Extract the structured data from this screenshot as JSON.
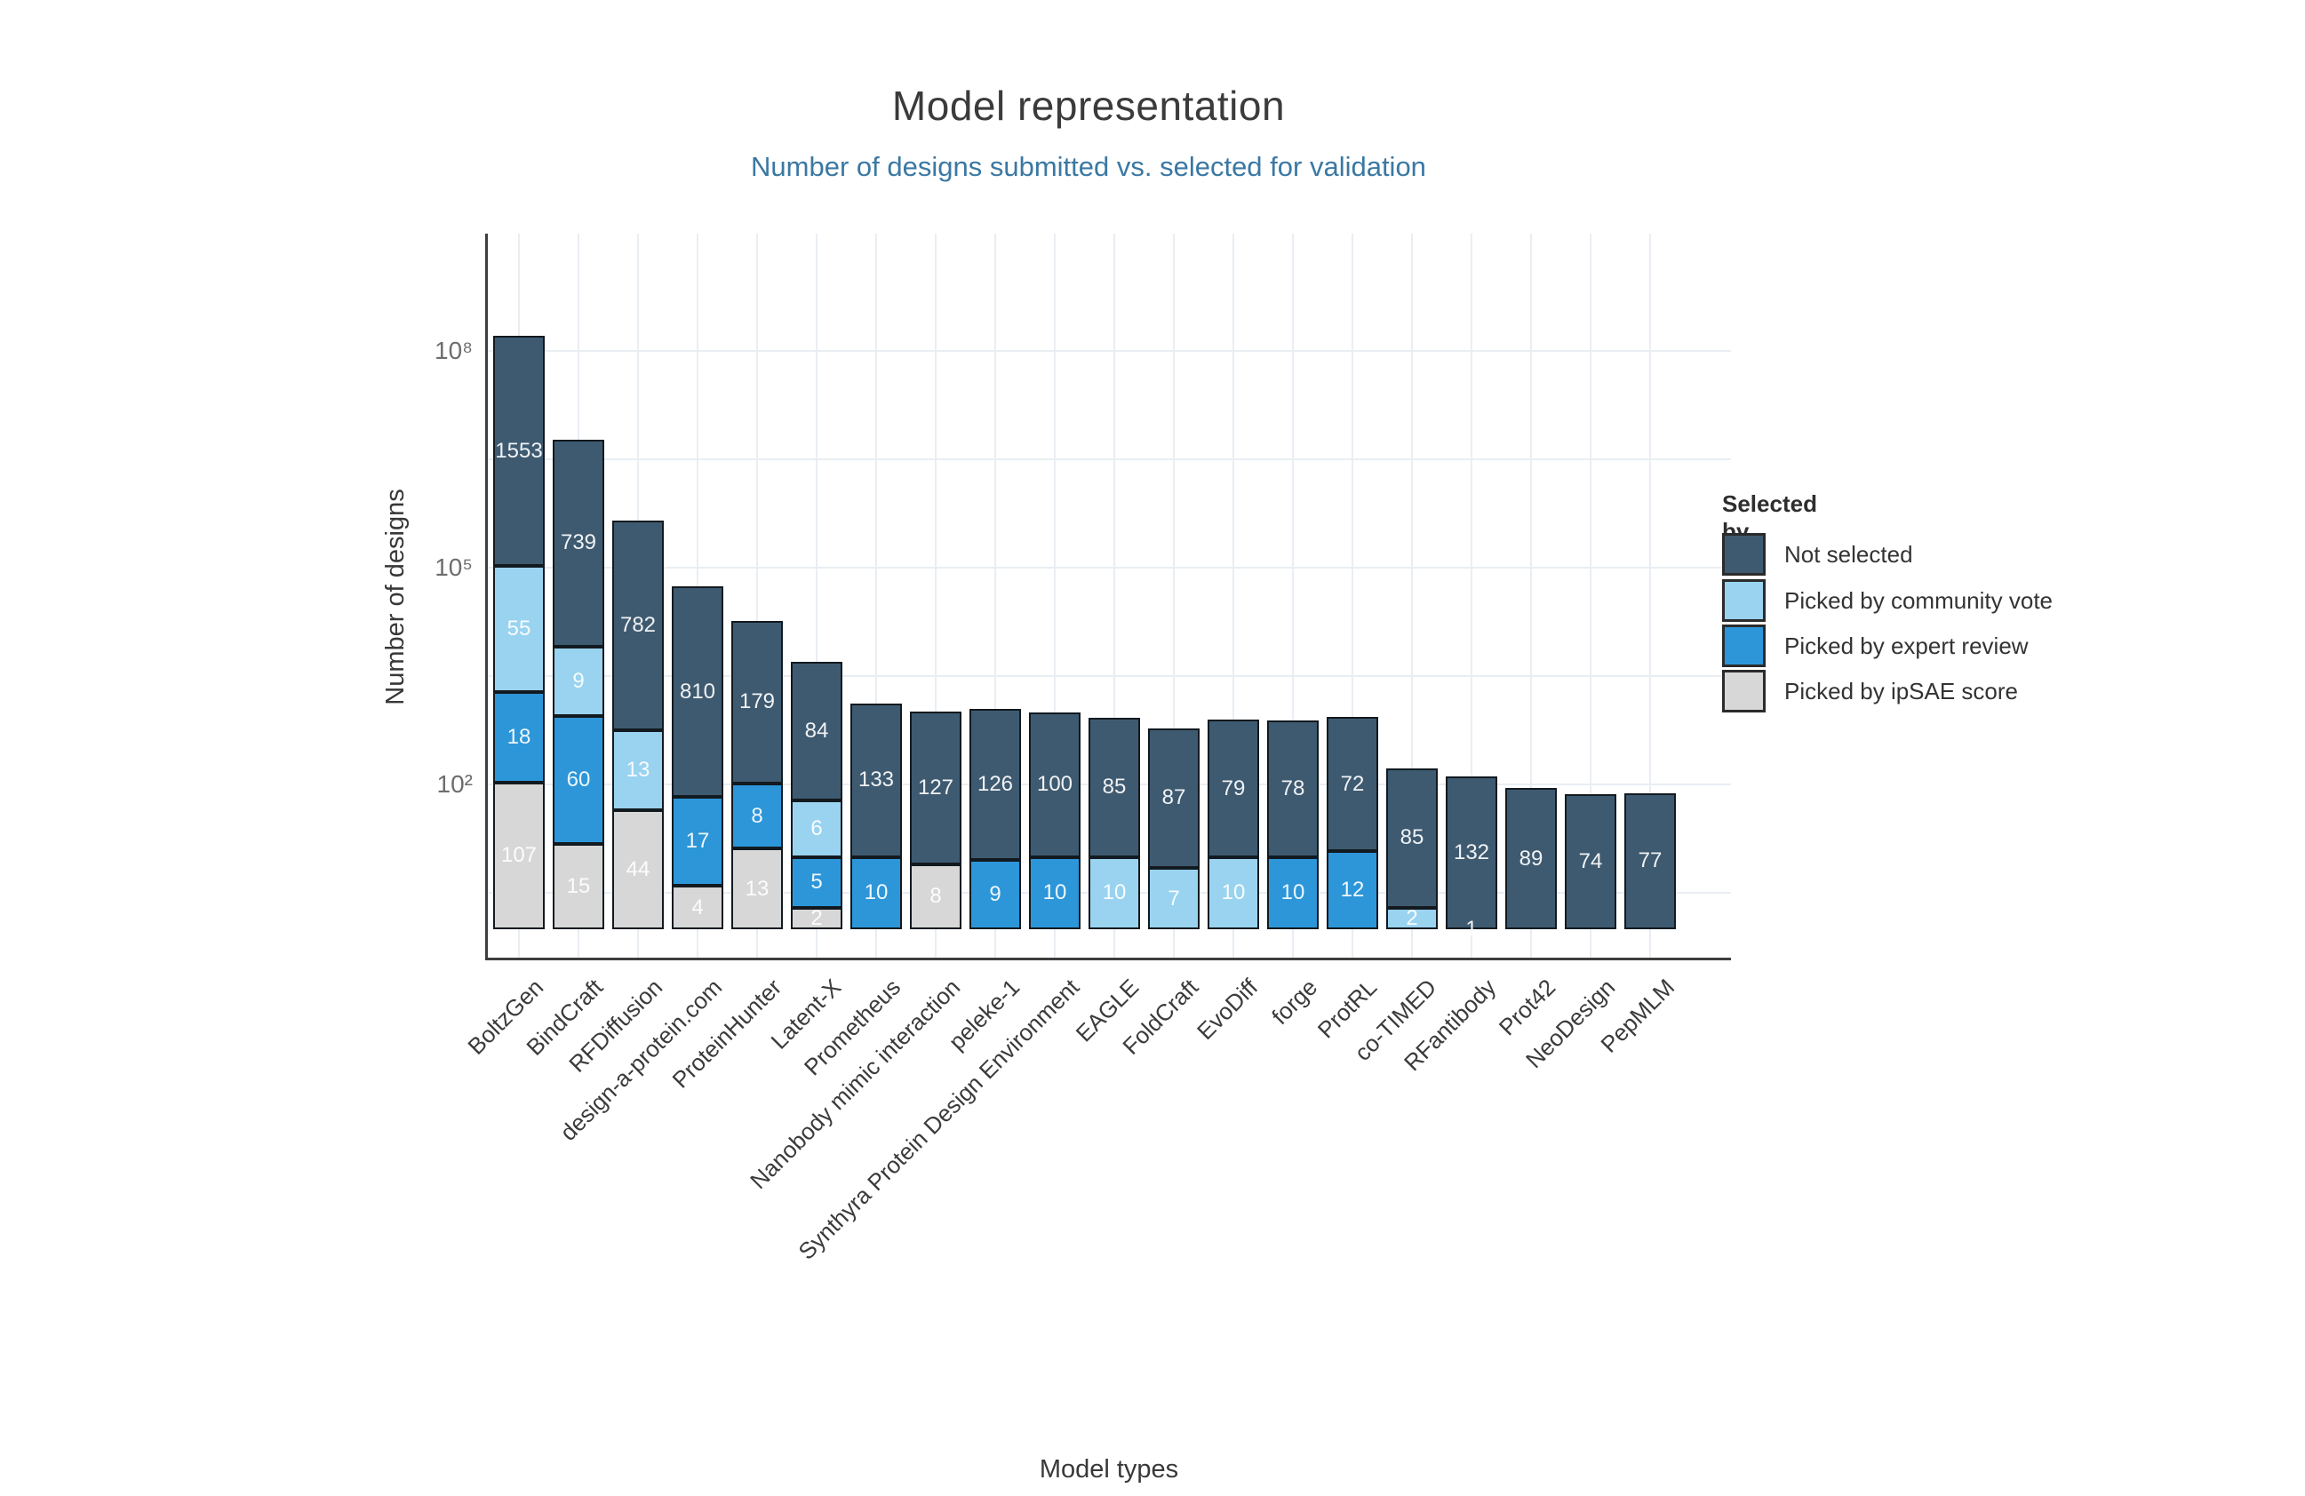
{
  "header": {
    "title": "Model representation",
    "subtitle": "Number of designs submitted vs. selected for validation"
  },
  "chart_data": {
    "type": "bar",
    "subtype": "stacked-bar-on-log-axis (segment pixel height proportional to log10 of value)",
    "title": "Model representation",
    "subtitle": "Number of designs submitted vs. selected for validation",
    "xlabel": "Model types",
    "ylabel": "Number of designs",
    "grid": "on",
    "legend_position": "right",
    "y_axis": {
      "scale": "log",
      "ticks": [
        {
          "label": "10⁸",
          "exp": 8
        },
        {
          "label": "10⁵",
          "exp": 5
        },
        {
          "label": "10²",
          "exp": 2
        }
      ]
    },
    "legend_title": "Selected by",
    "legend": [
      {
        "key": "not_selected",
        "label": "Not selected",
        "color": "#3e5a70"
      },
      {
        "key": "community",
        "label": "Picked by community vote",
        "color": "#99d3f0"
      },
      {
        "key": "expert",
        "label": "Picked by expert review",
        "color": "#2c96d9"
      },
      {
        "key": "ipsae",
        "label": "Picked by ipSAE score",
        "color": "#d7d7d7"
      }
    ],
    "categories": [
      "BoltzGen",
      "BindCraft",
      "RFDiffusion",
      "design-a-protein.com",
      "ProteinHunter",
      "Latent-X",
      "Prometheus",
      "Nanobody mimic interaction",
      "peleke-1",
      "Synthyra Protein Design Environment",
      "EAGLE",
      "FoldCraft",
      "EvoDiff",
      "forge",
      "ProtRL",
      "co-TIMED",
      "RFantibody",
      "Prot42",
      "NeoDesign",
      "PepMLM"
    ],
    "bars": [
      {
        "label": "BoltzGen",
        "segments": [
          {
            "key": "ipsae",
            "value": 107
          },
          {
            "key": "expert",
            "value": 18
          },
          {
            "key": "community",
            "value": 55
          },
          {
            "key": "not_selected",
            "value": 1553
          }
        ]
      },
      {
        "label": "BindCraft",
        "segments": [
          {
            "key": "ipsae",
            "value": 15
          },
          {
            "key": "expert",
            "value": 60
          },
          {
            "key": "community",
            "value": 9
          },
          {
            "key": "not_selected",
            "value": 739
          }
        ]
      },
      {
        "label": "RFDiffusion",
        "segments": [
          {
            "key": "ipsae",
            "value": 44
          },
          {
            "key": "community",
            "value": 13
          },
          {
            "key": "not_selected",
            "value": 782
          }
        ]
      },
      {
        "label": "design-a-protein.com",
        "segments": [
          {
            "key": "ipsae",
            "value": 4
          },
          {
            "key": "expert",
            "value": 17
          },
          {
            "key": "not_selected",
            "value": 810
          }
        ]
      },
      {
        "label": "ProteinHunter",
        "segments": [
          {
            "key": "ipsae",
            "value": 13
          },
          {
            "key": "expert",
            "value": 8
          },
          {
            "key": "not_selected",
            "value": 179
          }
        ]
      },
      {
        "label": "Latent-X",
        "segments": [
          {
            "key": "ipsae",
            "value": 2
          },
          {
            "key": "expert",
            "value": 5
          },
          {
            "key": "community",
            "value": 6
          },
          {
            "key": "not_selected",
            "value": 84
          }
        ]
      },
      {
        "label": "Prometheus",
        "segments": [
          {
            "key": "expert",
            "value": 10
          },
          {
            "key": "not_selected",
            "value": 133
          }
        ]
      },
      {
        "label": "Nanobody mimic interaction",
        "segments": [
          {
            "key": "ipsae",
            "value": 8
          },
          {
            "key": "not_selected",
            "value": 127
          }
        ]
      },
      {
        "label": "peleke-1",
        "segments": [
          {
            "key": "expert",
            "value": 9
          },
          {
            "key": "not_selected",
            "value": 126
          }
        ]
      },
      {
        "label": "Synthyra Protein Design Environment",
        "segments": [
          {
            "key": "expert",
            "value": 10
          },
          {
            "key": "not_selected",
            "value": 100
          }
        ]
      },
      {
        "label": "EAGLE",
        "segments": [
          {
            "key": "community",
            "value": 10
          },
          {
            "key": "not_selected",
            "value": 85
          }
        ]
      },
      {
        "label": "FoldCraft",
        "segments": [
          {
            "key": "community",
            "value": 7
          },
          {
            "key": "not_selected",
            "value": 87
          }
        ]
      },
      {
        "label": "EvoDiff",
        "segments": [
          {
            "key": "community",
            "value": 10
          },
          {
            "key": "not_selected",
            "value": 79
          }
        ]
      },
      {
        "label": "forge",
        "segments": [
          {
            "key": "expert",
            "value": 10
          },
          {
            "key": "not_selected",
            "value": 78
          }
        ]
      },
      {
        "label": "ProtRL",
        "segments": [
          {
            "key": "expert",
            "value": 12
          },
          {
            "key": "not_selected",
            "value": 72
          }
        ]
      },
      {
        "label": "co-TIMED",
        "segments": [
          {
            "key": "community",
            "value": 2
          },
          {
            "key": "not_selected",
            "value": 85
          }
        ]
      },
      {
        "label": "RFantibody",
        "segments": [
          {
            "key": "expert",
            "value": 1
          },
          {
            "key": "not_selected",
            "value": 132
          }
        ]
      },
      {
        "label": "Prot42",
        "segments": [
          {
            "key": "not_selected",
            "value": 89
          }
        ]
      },
      {
        "label": "NeoDesign",
        "segments": [
          {
            "key": "not_selected",
            "value": 74
          }
        ]
      },
      {
        "label": "PepMLM",
        "segments": [
          {
            "key": "not_selected",
            "value": 77
          }
        ]
      }
    ]
  }
}
